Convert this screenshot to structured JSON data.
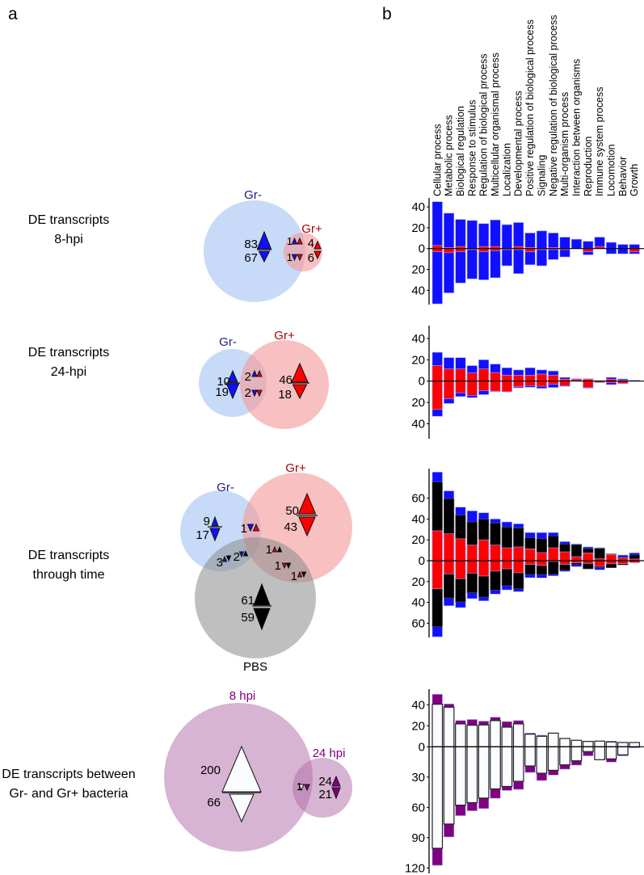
{
  "panel_labels": {
    "a": "a",
    "b": "b"
  },
  "row_titles": [
    [
      "DE transcripts",
      "8-hpi"
    ],
    [
      "DE transcripts",
      "24-hpi"
    ],
    [
      "DE transcripts",
      "through time"
    ],
    [
      "DE transcripts between",
      "Gr- and Gr+ bacteria"
    ]
  ],
  "colors": {
    "gr_minus": "#1010ff",
    "gr_plus": "#ff0000",
    "pbs": "#000000",
    "purple": "#800080",
    "white": "#fafcff",
    "gr_minus_label": "#1a1a8c",
    "gr_plus_label": "#b00000"
  },
  "venns": [
    {
      "set_labels": [
        "Gr-",
        "Gr+"
      ],
      "counts": [
        "83",
        "67",
        "1",
        "1",
        "4",
        "6"
      ]
    },
    {
      "set_labels": [
        "Gr-",
        "Gr+"
      ],
      "counts": [
        "10",
        "19",
        "2",
        "2",
        "46",
        "18"
      ]
    },
    {
      "set_labels": [
        "Gr-",
        "Gr+",
        "PBS"
      ],
      "counts": [
        "9",
        "17",
        "1",
        "50",
        "43",
        "3",
        "2",
        "1",
        "1",
        "1",
        "61",
        "59"
      ]
    },
    {
      "set_labels": [
        "8 hpi",
        "24 hpi"
      ],
      "counts": [
        "200",
        "66",
        "1",
        "24",
        "21"
      ]
    }
  ],
  "chart_data": [
    {
      "type": "bar",
      "title": "DE transcripts 8-hpi",
      "stacked": "cumulative",
      "categories": [
        "Cellular  process",
        "Metabolic  process",
        "Biological  regulation",
        "Response  to  stimulus",
        "Regulation  of  biological  process",
        "Multicellular  organismal  process",
        "Localization",
        "Developmental  process",
        "Positive regulation of biological process",
        "Signaling",
        "Negative regulation of biological process",
        "Multi-organism  process",
        "Interaction  between  organisms",
        "Reproduction",
        "Immune  system  process",
        "Locomotion",
        "Behavior",
        "Growth"
      ],
      "yticks_up": [
        40,
        20,
        0
      ],
      "yticks_down": [
        20,
        40
      ],
      "ylim": [
        -55,
        48
      ],
      "series": [
        {
          "name": "Gr-",
          "color": "#1010ff",
          "up": [
            45,
            34,
            28,
            27,
            24,
            27.5,
            23,
            25,
            15,
            17,
            15,
            11,
            9,
            7,
            11,
            6,
            4,
            4
          ],
          "down": [
            53,
            42.5,
            33,
            29,
            30,
            28,
            16.5,
            24,
            15.5,
            16.5,
            10.5,
            8,
            0,
            6,
            0,
            5,
            5,
            5
          ]
        },
        {
          "name": "Gr+",
          "color": "#ff0000",
          "up": [
            3,
            1,
            2,
            0,
            2,
            2,
            0,
            2,
            1,
            0,
            1,
            0,
            0,
            0,
            2,
            0,
            0,
            0
          ],
          "down": [
            3,
            4,
            3,
            1,
            3,
            2,
            1,
            1,
            3,
            1,
            1,
            1,
            0,
            3,
            0,
            0,
            0,
            3
          ]
        }
      ]
    },
    {
      "type": "bar",
      "title": "DE transcripts 24-hpi",
      "stacked": "cumulative",
      "yticks_up": [
        40,
        20,
        0
      ],
      "yticks_down": [
        20,
        40
      ],
      "ylim": [
        -52,
        52
      ],
      "series": [
        {
          "name": "Gr-",
          "color": "#1010ff",
          "up": [
            27,
            22,
            22,
            14.5,
            20,
            16,
            12.5,
            10.5,
            12.5,
            10.5,
            9.5,
            3.5,
            2.3,
            2.3,
            0.5,
            3.5,
            2,
            0.8
          ],
          "down": [
            33,
            21,
            14.5,
            15.5,
            12.7,
            10,
            10,
            6.3,
            5.8,
            6.8,
            6,
            5,
            0,
            6.6,
            1.3,
            3.3,
            2.3,
            0
          ]
        },
        {
          "name": "Gr+",
          "color": "#ff0000",
          "up": [
            14.7,
            11.4,
            11.4,
            7.6,
            11.4,
            8,
            5.6,
            5.6,
            5.6,
            6.6,
            5.6,
            1.8,
            1.8,
            1.8,
            0,
            1.8,
            0.8,
            0.8
          ],
          "down": [
            26.6,
            16.5,
            11,
            13.4,
            8.9,
            9.4,
            10,
            5.3,
            4.3,
            4.8,
            3,
            4.3,
            0,
            5.8,
            1.3,
            1.5,
            2.3,
            0
          ]
        }
      ]
    },
    {
      "type": "bar",
      "title": "DE transcripts through time",
      "stacked": "cumulative",
      "yticks_up": [
        60,
        40,
        20,
        0
      ],
      "yticks_down": [
        20,
        40,
        60
      ],
      "ylim": [
        -74,
        88
      ],
      "series": [
        {
          "name": "Gr-",
          "color": "#1010ff",
          "up": [
            85,
            67,
            51.4,
            47.8,
            46,
            40,
            37.2,
            35.4,
            27,
            27,
            27,
            18.3,
            16,
            13.2,
            12.4,
            6.5,
            5.4,
            7.5
          ],
          "down": [
            73,
            43.2,
            45,
            36.4,
            38.5,
            32,
            28,
            29.7,
            16.3,
            16.5,
            14.5,
            10.3,
            5.7,
            7.8,
            8.8,
            6.7,
            3.9,
            1.8
          ]
        },
        {
          "name": "PBS",
          "color": "#000000",
          "up": [
            75.5,
            59.4,
            43.7,
            37.2,
            39.8,
            36,
            32.3,
            31.3,
            22,
            21,
            23.8,
            15.8,
            15.2,
            11.4,
            11.6,
            6.5,
            3.4,
            5.4
          ],
          "down": [
            63.3,
            35.7,
            39.5,
            30.7,
            34.9,
            28.2,
            24,
            27,
            13.2,
            13.2,
            13,
            9,
            3.6,
            7.8,
            6.5,
            6.7,
            3.9,
            1.8
          ]
        },
        {
          "name": "Gr+",
          "color": "#ff0000",
          "up": [
            28.7,
            25.8,
            21,
            15,
            20,
            15,
            12.4,
            13.2,
            11.4,
            7.8,
            12.4,
            8.5,
            3.9,
            7.5,
            1.8,
            6,
            2.6,
            1.6
          ],
          "down": [
            27,
            12.7,
            17.3,
            11.9,
            14.7,
            10,
            7.8,
            11.6,
            3.6,
            4.6,
            0.8,
            3.6,
            2,
            2.6,
            5.4,
            3,
            2.8,
            1.8
          ]
        }
      ]
    },
    {
      "type": "bar",
      "title": "DE transcripts between Gr- and Gr+ bacteria",
      "stacked": "cumulative",
      "yticks_up": [
        40,
        20,
        0
      ],
      "yticks_down": [
        30,
        60,
        90,
        120
      ],
      "ylim": [
        -122,
        54
      ],
      "series": [
        {
          "name": "24 hpi",
          "color": "#800080",
          "up": [
            50,
            40.8,
            25,
            26,
            24.4,
            28.2,
            24,
            25,
            13,
            11,
            13,
            7.9,
            6.2,
            5.1,
            5.4,
            5.4,
            4.1,
            4.1
          ],
          "down": [
            117.4,
            89.3,
            68.2,
            63.4,
            61.2,
            51,
            43.3,
            42.2,
            25.4,
            33.4,
            28,
            22.2,
            18.2,
            9,
            12.8,
            15.2,
            9,
            1
          ]
        },
        {
          "name": "8 hpi",
          "color": "#fafcff",
          "up": [
            40.5,
            37.7,
            21.8,
            20.5,
            20.8,
            24.9,
            18.7,
            21.8,
            12,
            10,
            13,
            7.9,
            6.2,
            5.1,
            5.4,
            4.6,
            4.1,
            4.1
          ],
          "down": [
            100.5,
            76.5,
            57.8,
            55.3,
            50.8,
            41.7,
            39.3,
            34.2,
            19,
            26.2,
            23.3,
            17.9,
            13.9,
            4.8,
            12.8,
            12,
            8,
            0
          ]
        }
      ]
    }
  ]
}
